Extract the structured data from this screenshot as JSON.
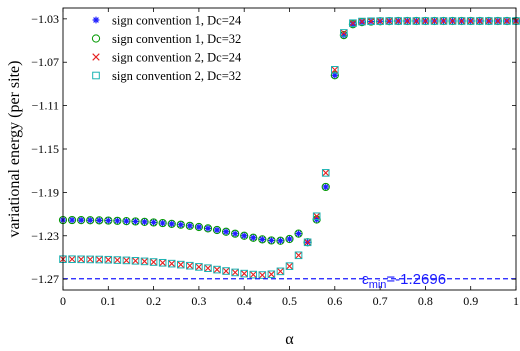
{
  "chart_data": {
    "type": "scatter",
    "xlabel": "α",
    "ylabel": "variational energy (per site)",
    "xlim": [
      0,
      1
    ],
    "ylim": [
      -1.28,
      -1.02
    ],
    "xticks": [
      "0",
      "0.1",
      "0.2",
      "0.3",
      "0.4",
      "0.5",
      "0.6",
      "0.7",
      "0.8",
      "0.9",
      "1"
    ],
    "yticks": [
      "−1.03",
      "−1.07",
      "−1.11",
      "−1.15",
      "−1.19",
      "−1.23",
      "−1.27"
    ],
    "legend_position": "top-left",
    "grid": false,
    "reference_line": {
      "y": -1.2696,
      "style": "dashed",
      "color": "#1a1aff"
    },
    "annotation": {
      "base": "ε",
      "sub": "min",
      "text": "=-1.2696"
    },
    "x": [
      0,
      0.02,
      0.04,
      0.06,
      0.08,
      0.1,
      0.12,
      0.14,
      0.16,
      0.18,
      0.2,
      0.22,
      0.24,
      0.26,
      0.28,
      0.3,
      0.32,
      0.34,
      0.36,
      0.38,
      0.4,
      0.42,
      0.44,
      0.46,
      0.48,
      0.5,
      0.52,
      0.54,
      0.56,
      0.58,
      0.6,
      0.62,
      0.64,
      0.66,
      0.68,
      0.7,
      0.72,
      0.74,
      0.76,
      0.78,
      0.8,
      0.82,
      0.84,
      0.86,
      0.88,
      0.9,
      0.92,
      0.94,
      0.96,
      0.98,
      1.0
    ],
    "series": [
      {
        "name": "sign convention 1, Dc=24",
        "marker": "star",
        "color": "#1f1fff",
        "values": [
          -1.2155,
          -1.2155,
          -1.2156,
          -1.2157,
          -1.2158,
          -1.216,
          -1.2162,
          -1.2165,
          -1.2168,
          -1.2172,
          -1.2177,
          -1.2183,
          -1.219,
          -1.2198,
          -1.2208,
          -1.2219,
          -1.2232,
          -1.2247,
          -1.2263,
          -1.2281,
          -1.23,
          -1.2318,
          -1.2333,
          -1.2343,
          -1.2346,
          -1.233,
          -1.228,
          -1.236,
          -1.215,
          -1.185,
          -1.082,
          -1.045,
          -1.035,
          -1.033,
          -1.0325,
          -1.0322,
          -1.0321,
          -1.032,
          -1.032,
          -1.032,
          -1.032,
          -1.032,
          -1.032,
          -1.032,
          -1.032,
          -1.032,
          -1.032,
          -1.032,
          -1.032,
          -1.032,
          -1.032
        ]
      },
      {
        "name": "sign convention 1, Dc=32",
        "marker": "circle",
        "color": "#009900",
        "values": [
          -1.2155,
          -1.2155,
          -1.2156,
          -1.2157,
          -1.2158,
          -1.216,
          -1.2162,
          -1.2165,
          -1.2168,
          -1.2172,
          -1.2177,
          -1.2183,
          -1.219,
          -1.2198,
          -1.2208,
          -1.2219,
          -1.2232,
          -1.2247,
          -1.2263,
          -1.2281,
          -1.23,
          -1.2318,
          -1.2333,
          -1.2343,
          -1.2346,
          -1.233,
          -1.228,
          -1.236,
          -1.215,
          -1.185,
          -1.082,
          -1.045,
          -1.035,
          -1.033,
          -1.0325,
          -1.0322,
          -1.0321,
          -1.032,
          -1.032,
          -1.032,
          -1.032,
          -1.032,
          -1.032,
          -1.032,
          -1.032,
          -1.032,
          -1.032,
          -1.032,
          -1.032,
          -1.032,
          -1.032
        ]
      },
      {
        "name": "sign convention 2, Dc=24",
        "marker": "x",
        "color": "#e62020",
        "values": [
          -1.2516,
          -1.2516,
          -1.2517,
          -1.2518,
          -1.2519,
          -1.2521,
          -1.2524,
          -1.2527,
          -1.2531,
          -1.2536,
          -1.2542,
          -1.2549,
          -1.2557,
          -1.2566,
          -1.2576,
          -1.2587,
          -1.2599,
          -1.2612,
          -1.2625,
          -1.2638,
          -1.2649,
          -1.2658,
          -1.2662,
          -1.2655,
          -1.2628,
          -1.258,
          -1.248,
          -1.236,
          -1.212,
          -1.172,
          -1.077,
          -1.043,
          -1.034,
          -1.0325,
          -1.0322,
          -1.0321,
          -1.032,
          -1.032,
          -1.032,
          -1.032,
          -1.032,
          -1.032,
          -1.032,
          -1.032,
          -1.032,
          -1.032,
          -1.032,
          -1.032,
          -1.032,
          -1.032,
          -1.032
        ]
      },
      {
        "name": "sign convention 2, Dc=32",
        "marker": "square",
        "color": "#19b3b3",
        "values": [
          -1.2516,
          -1.2516,
          -1.2517,
          -1.2518,
          -1.2519,
          -1.2521,
          -1.2524,
          -1.2527,
          -1.2531,
          -1.2536,
          -1.2542,
          -1.2549,
          -1.2557,
          -1.2566,
          -1.2576,
          -1.2587,
          -1.2599,
          -1.2612,
          -1.2625,
          -1.2638,
          -1.2649,
          -1.2658,
          -1.2662,
          -1.2655,
          -1.2628,
          -1.258,
          -1.248,
          -1.236,
          -1.212,
          -1.172,
          -1.077,
          -1.043,
          -1.034,
          -1.0325,
          -1.0322,
          -1.0321,
          -1.032,
          -1.032,
          -1.032,
          -1.032,
          -1.032,
          -1.032,
          -1.032,
          -1.032,
          -1.032,
          -1.032,
          -1.032,
          -1.032,
          -1.032,
          -1.032,
          -1.032
        ]
      }
    ]
  }
}
